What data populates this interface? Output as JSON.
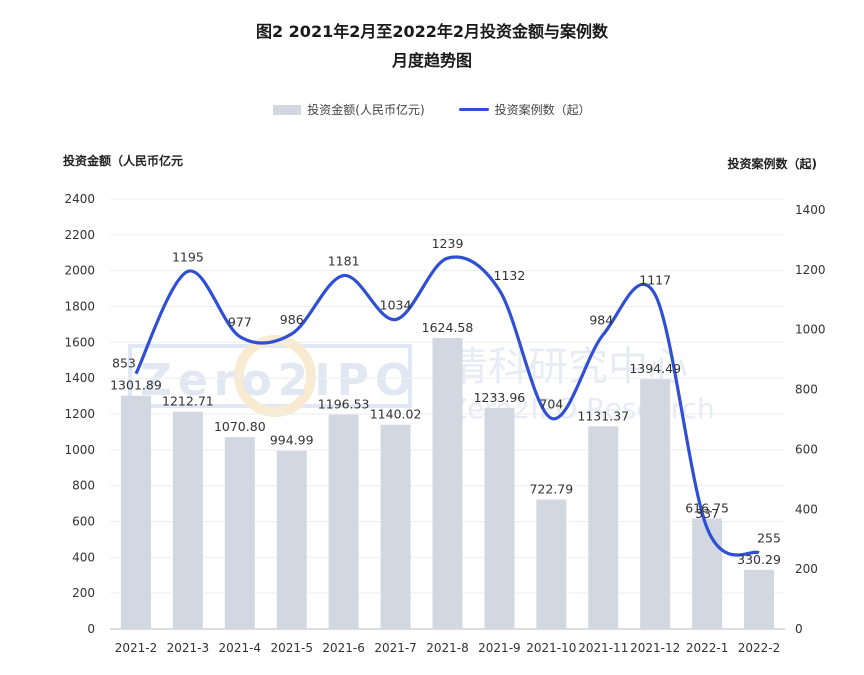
{
  "chart_data": {
    "type": "bar+line",
    "title_line1": "图2   2021年2月至2022年2月投资金额与案例数",
    "title_line2": "月度趋势图",
    "categories": [
      "2021-2",
      "2021-3",
      "2021-4",
      "2021-5",
      "2021-6",
      "2021-7",
      "2021-8",
      "2021-9",
      "2021-10",
      "2021-11",
      "2021-12",
      "2022-1",
      "2022-2"
    ],
    "series": [
      {
        "name": "投资金额(人民币亿元)",
        "kind": "bar",
        "axis": "left",
        "values": [
          1301.89,
          1212.71,
          1070.8,
          994.99,
          1196.53,
          1140.02,
          1624.58,
          1233.96,
          722.79,
          1131.37,
          1394.49,
          616.75,
          330.29
        ],
        "labels": [
          "1301.89",
          "1212.71",
          "1070.80",
          "994.99",
          "1196.53",
          "1140.02",
          "1624.58",
          "1233.96",
          "722.79",
          "1131.37",
          "1394.49",
          "616.75",
          "330.29"
        ],
        "color": "#d2d7e2"
      },
      {
        "name": "投资案例数（起）",
        "kind": "line",
        "axis": "right",
        "values": [
          853,
          1195,
          977,
          986,
          1181,
          1034,
          1239,
          1132,
          704,
          984,
          1117,
          337,
          255
        ],
        "labels": [
          "853",
          "1195",
          "977",
          "986",
          "1181",
          "1034",
          "1239",
          "1132",
          "704",
          "984",
          "1117",
          "337",
          "255"
        ],
        "color": "#2f4fd4"
      }
    ],
    "ylabel_left": "投资金额（人民币亿元",
    "ylabel_right": "投资案例数（起)",
    "ylim_left": [
      0,
      2400
    ],
    "yticks_left": [
      "0",
      "200",
      "400",
      "600",
      "800",
      "1000",
      "1200",
      "1400",
      "1600",
      "1800",
      "2000",
      "2200",
      "2400"
    ],
    "ylim_right": [
      0,
      1400
    ],
    "yticks_right": [
      "0",
      "200",
      "400",
      "600",
      "800",
      "1000",
      "1200",
      "1400"
    ],
    "grid": true,
    "legend_position": "top-center"
  },
  "watermark": {
    "logo_text": "Zero2IPO",
    "cn_text": "清科研究中心",
    "en_text": "Zero2IPO Research"
  }
}
